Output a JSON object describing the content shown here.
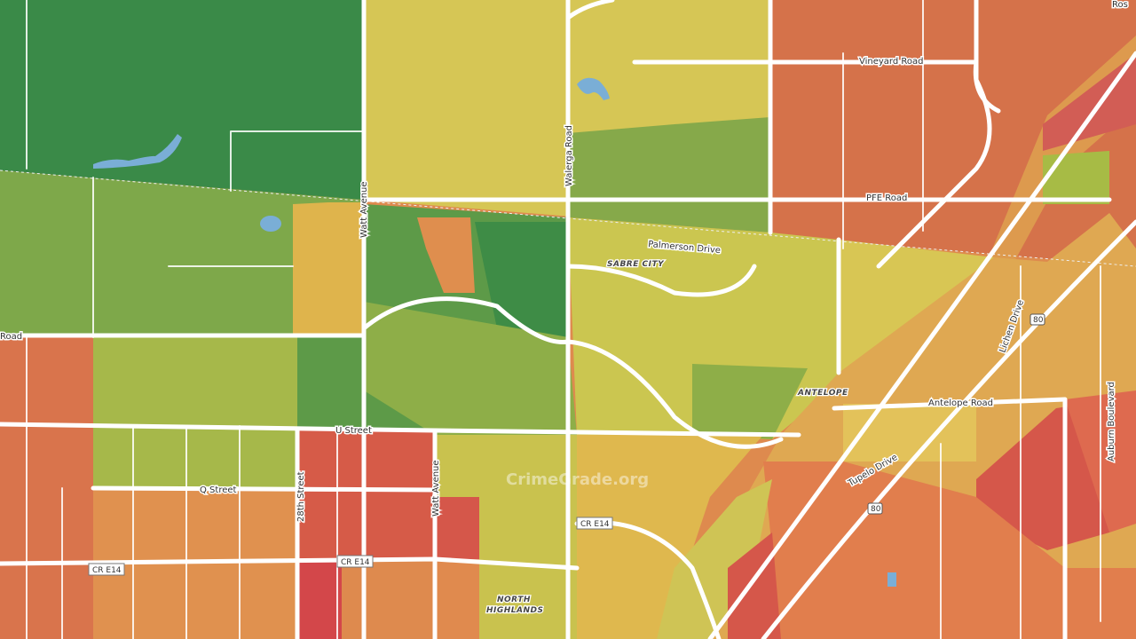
{
  "labels": {
    "ros": "Ros",
    "vineyard": "Vineyard Road",
    "walerga": "Walerga Road",
    "pfe": "PFE Road",
    "palmerson": "Palmerson Drive",
    "sabre_city": "SABRE CITY",
    "watt_north": "Watt Avenue",
    "road_west": "Road",
    "lichen": "Lichen Drive",
    "i80_north": "80",
    "auburn": "Auburn Boulevard",
    "antelope_place": "ANTELOPE",
    "antelope_road": "Antelope Road",
    "u_street": "U Street",
    "q_street": "Q Street",
    "street_28": "28th Street",
    "watt_south": "Watt Avenue",
    "tupelo": "Tupelo Drive",
    "i80_south": "80",
    "cr_e14_east": "CR E14",
    "cr_e14_west": "CR E14",
    "north_highlands": "NORTH HIGHLANDS",
    "watermark": "CrimeGrade.org"
  }
}
